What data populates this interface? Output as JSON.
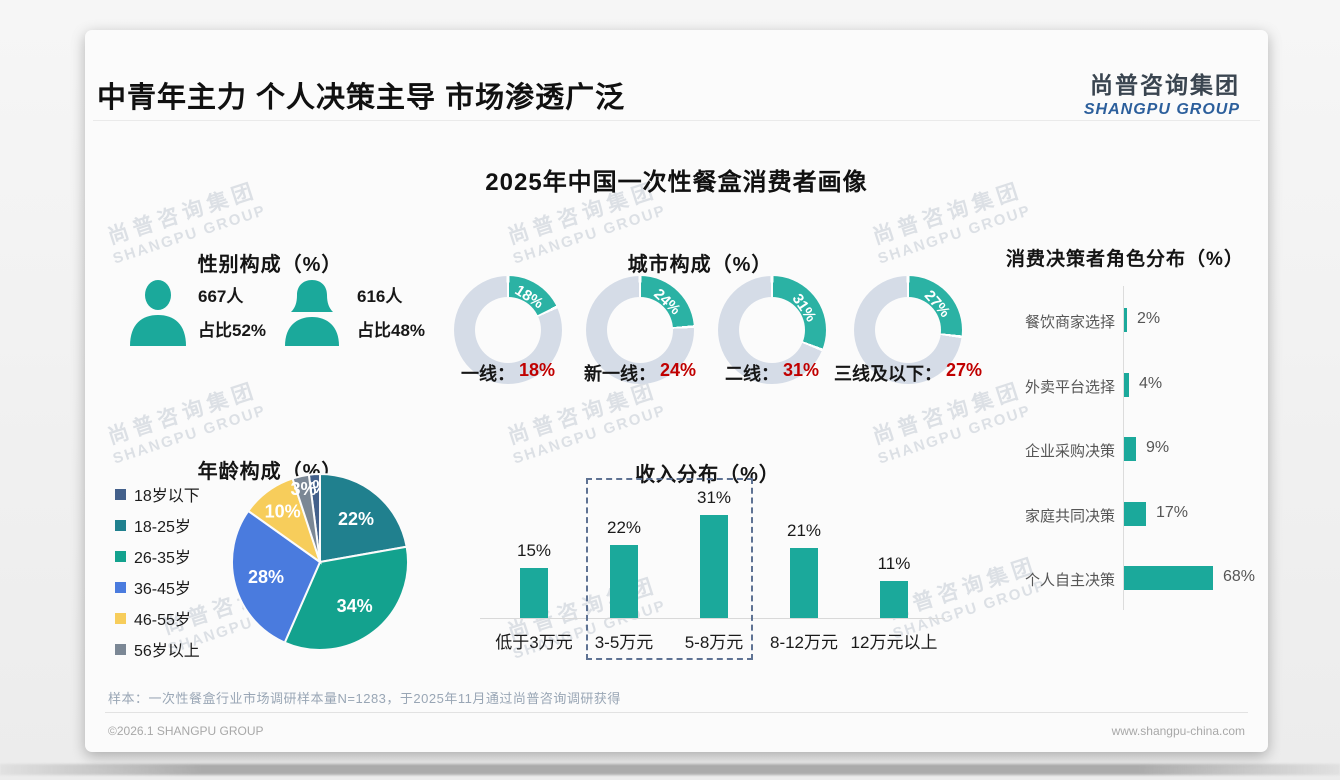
{
  "page": {
    "title": "中青年主力 个人决策主导 市场渗透广泛",
    "chart_title": "2025年中国一次性餐盒消费者画像",
    "sample_note": "样本：一次性餐盒行业市场调研样本量N=1283，于2025年11月通过尚普咨询调研获得",
    "footer_left": "©2026.1 SHANGPU GROUP",
    "footer_right": "www.shangpu-china.com"
  },
  "logo": {
    "cn": "尚普咨询集团",
    "en": "SHANGPU GROUP"
  },
  "watermark": {
    "cn": "尚普咨询集团",
    "en": "SHANGPU GROUP"
  },
  "colors": {
    "teal": "#1BA99B",
    "donut_teal": "#2BB2A4",
    "donut_rest": "#D5DCE7",
    "red_accent": "#C00000",
    "logo_blue": "#2C5F9C"
  },
  "chart_data": [
    {
      "id": "gender",
      "type": "pictogram",
      "title": "性别构成（%）",
      "items": [
        {
          "icon": "male-user-icon",
          "count": "667人",
          "share": "占比52%"
        },
        {
          "icon": "female-user-icon",
          "count": "616人",
          "share": "占比48%"
        }
      ]
    },
    {
      "id": "city",
      "type": "donut",
      "title": "城市构成（%）",
      "categories": [
        "一线",
        "新一线",
        "二线",
        "三线及以下"
      ],
      "values": [
        18,
        24,
        31,
        27
      ],
      "unit": "%",
      "value_color": "#C00000"
    },
    {
      "id": "age",
      "type": "pie",
      "title": "年龄构成（%）",
      "categories": [
        "18岁以下",
        "18-25岁",
        "26-35岁",
        "36-45岁",
        "46-55岁",
        "56岁以上"
      ],
      "values": [
        2,
        22,
        34,
        28,
        10,
        3
      ],
      "colors": [
        "#43608B",
        "#20808E",
        "#13A28E",
        "#4A7BDE",
        "#F7CD5B",
        "#7B8795"
      ],
      "legend_position": "left",
      "label_format": "percent-inside"
    },
    {
      "id": "income",
      "type": "bar",
      "title": "收入分布（%）",
      "categories": [
        "低于3万元",
        "3-5万元",
        "5-8万元",
        "8-12万元",
        "12万元以上"
      ],
      "values": [
        15,
        22,
        31,
        21,
        11
      ],
      "highlight_box_categories": [
        "3-5万元",
        "5-8万元"
      ],
      "ylim": [
        0,
        35
      ],
      "grid": false
    },
    {
      "id": "decision",
      "type": "horizontal-bar",
      "title": "消费决策者角色分布（%）",
      "categories": [
        "餐饮商家选择",
        "外卖平台选择",
        "企业采购决策",
        "家庭共同决策",
        "个人自主决策"
      ],
      "values": [
        2,
        4,
        9,
        17,
        68
      ],
      "xlim": [
        0,
        75
      ]
    }
  ]
}
